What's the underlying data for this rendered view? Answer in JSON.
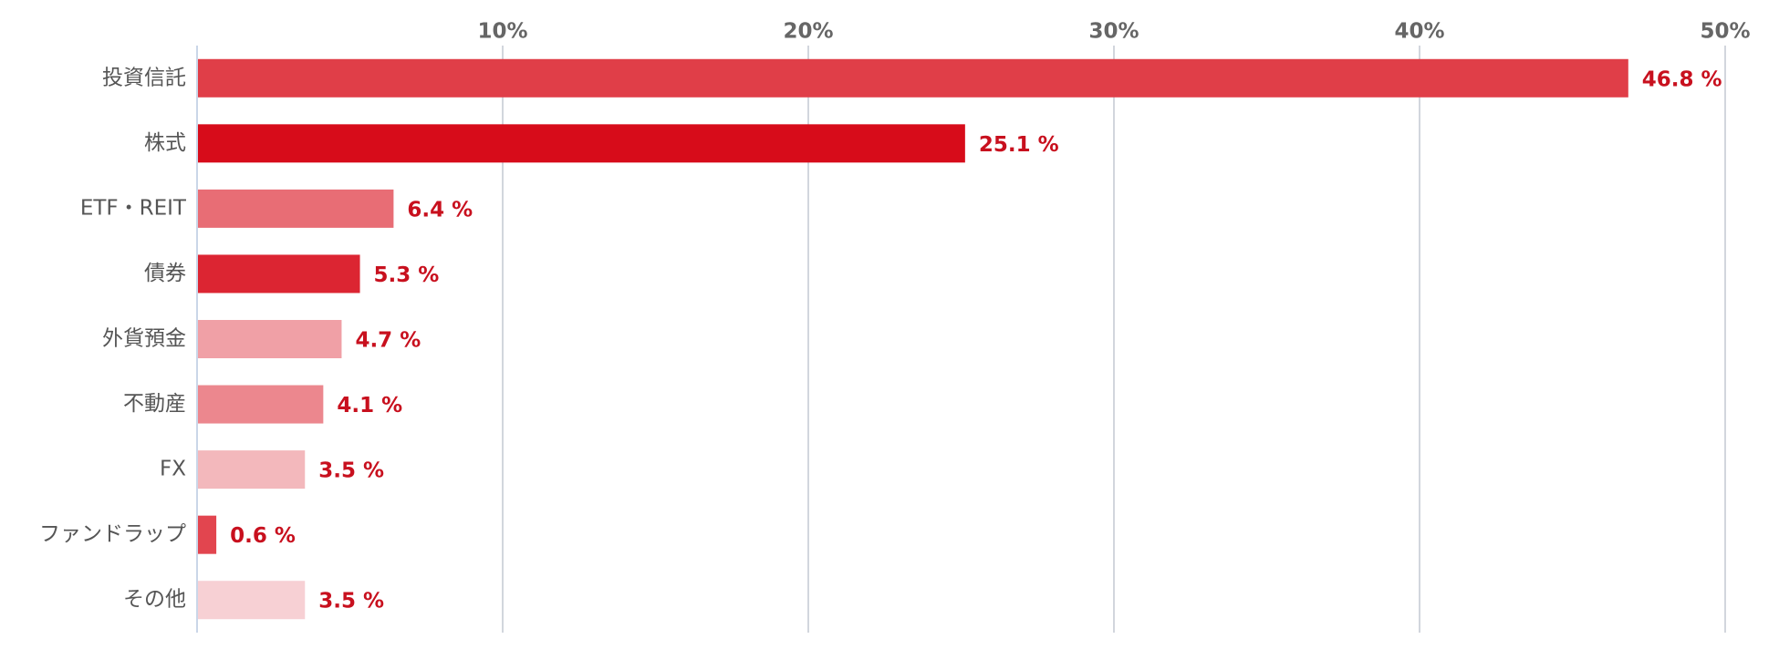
{
  "chart_data": {
    "type": "hbar",
    "categories": [
      "投資信託",
      "株式",
      "ETF・REIT",
      "債券",
      "外貨預金",
      "不動産",
      "FX",
      "ファンドラップ",
      "その他"
    ],
    "values": [
      46.8,
      25.1,
      6.4,
      5.3,
      4.7,
      4.1,
      3.5,
      0.6,
      3.5
    ],
    "value_labels": [
      "46.8 %",
      "25.1 %",
      "6.4 %",
      "5.3 %",
      "4.7 %",
      "4.1 %",
      "3.5 %",
      "0.6 %",
      "3.5 %"
    ],
    "colors": [
      "#e03e48",
      "#d70c1a",
      "#e86d75",
      "#dc2532",
      "#f0a0a6",
      "#ec878e",
      "#f3b8bc",
      "#e2454f",
      "#f7d0d4"
    ],
    "label_color": "#c8101e",
    "xlim": [
      0,
      50
    ],
    "xticks": [
      {
        "value": 10,
        "label": "10%"
      },
      {
        "value": 20,
        "label": "20%"
      },
      {
        "value": 30,
        "label": "30%"
      },
      {
        "value": 40,
        "label": "40%"
      },
      {
        "value": 50,
        "label": "50%"
      }
    ],
    "grid": true
  }
}
